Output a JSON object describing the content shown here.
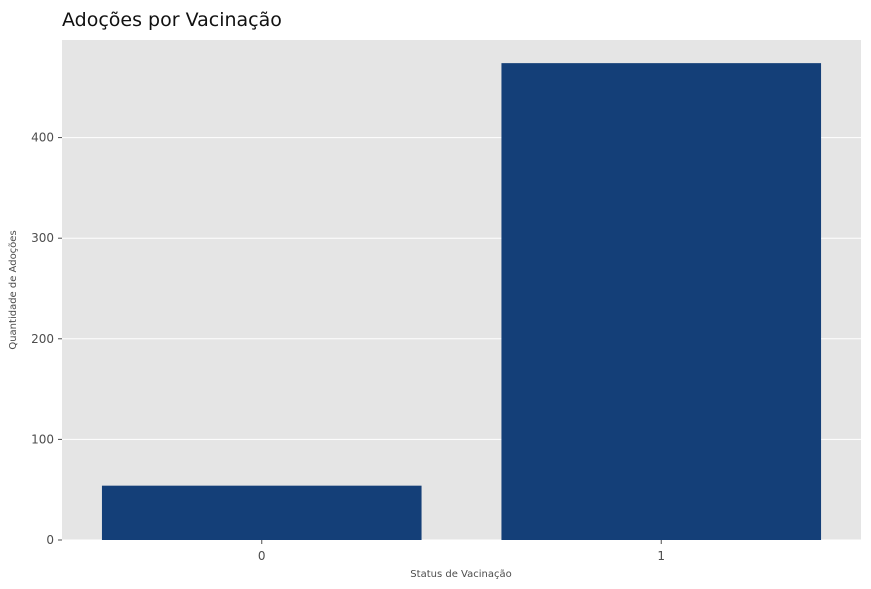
{
  "chart_data": {
    "type": "bar",
    "title": "Adoções por Vacinação",
    "xlabel": "Status de Vacinação",
    "ylabel": "Quantidade de Adoções",
    "categories": [
      "0",
      "1"
    ],
    "values": [
      54,
      474
    ],
    "ylim": [
      0,
      497
    ],
    "yticks": [
      0,
      100,
      200,
      300,
      400
    ],
    "grid": true,
    "legend": "none",
    "colors": {
      "bar": "#143f78",
      "plot_background": "#e5e5e5",
      "grid": "#ffffff"
    }
  }
}
